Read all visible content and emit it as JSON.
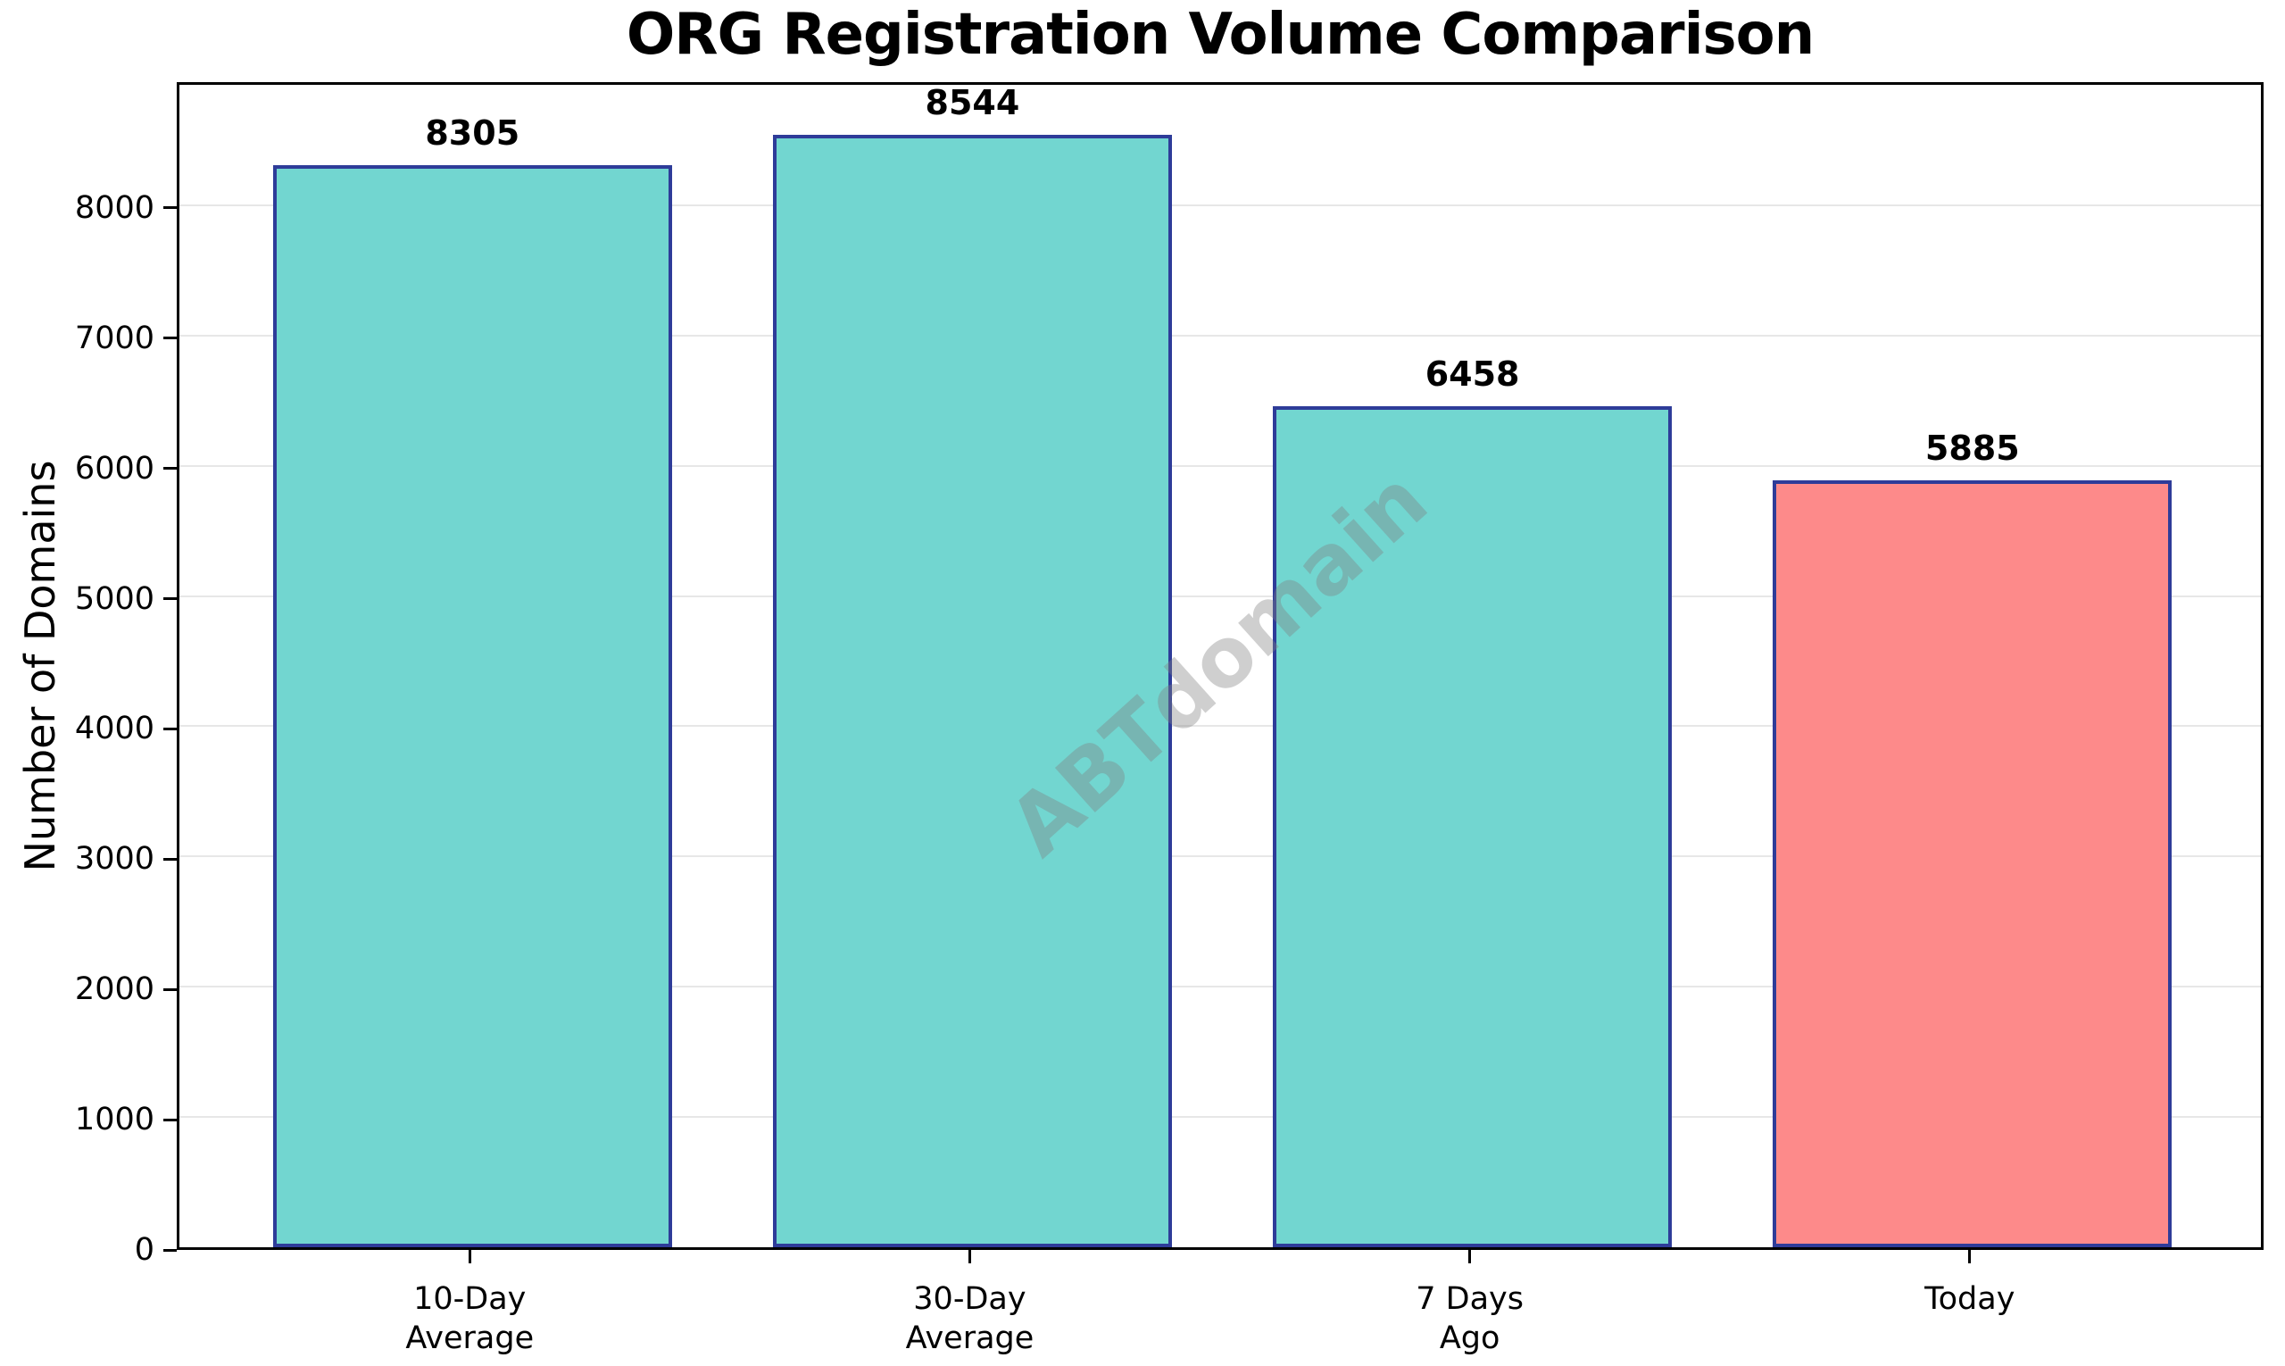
{
  "chart_data": {
    "type": "bar",
    "title": "ORG Registration Volume Comparison",
    "ylabel": "Number of Domains",
    "xlabel": "",
    "categories": [
      "10-Day\nAverage",
      "30-Day\nAverage",
      "7 Days\nAgo",
      "Today"
    ],
    "values": [
      8305,
      8544,
      6458,
      5885
    ],
    "value_labels": [
      "8305",
      "8544",
      "6458",
      "5885"
    ],
    "yticks": [
      0,
      1000,
      2000,
      3000,
      4000,
      5000,
      6000,
      7000,
      8000
    ],
    "ylim": [
      0,
      8966
    ],
    "grid": true,
    "legend_position": "none",
    "colors": {
      "bar_fills": [
        "#72D6D0",
        "#72D6D0",
        "#72D6D0",
        "#FD8A8A"
      ],
      "bar_edge": "#2E3C99",
      "grid": "#E7E7E7",
      "spine": "#000000",
      "text": "#000000"
    }
  },
  "watermark": {
    "text": "ABTdomain",
    "color": "#808080",
    "opacity": 0.38,
    "angle_deg": -42
  }
}
